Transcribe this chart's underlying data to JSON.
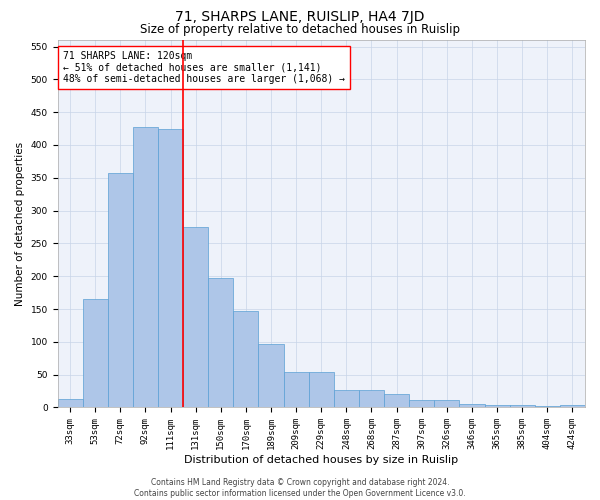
{
  "title": "71, SHARPS LANE, RUISLIP, HA4 7JD",
  "subtitle": "Size of property relative to detached houses in Ruislip",
  "xlabel": "Distribution of detached houses by size in Ruislip",
  "ylabel": "Number of detached properties",
  "categories": [
    "33sqm",
    "53sqm",
    "72sqm",
    "92sqm",
    "111sqm",
    "131sqm",
    "150sqm",
    "170sqm",
    "189sqm",
    "209sqm",
    "229sqm",
    "248sqm",
    "268sqm",
    "287sqm",
    "307sqm",
    "326sqm",
    "346sqm",
    "365sqm",
    "385sqm",
    "404sqm",
    "424sqm"
  ],
  "values": [
    13,
    165,
    358,
    428,
    425,
    275,
    197,
    147,
    97,
    54,
    54,
    27,
    27,
    20,
    11,
    11,
    6,
    4,
    4,
    2,
    4
  ],
  "bar_color": "#aec6e8",
  "bar_edge_color": "#5a9fd4",
  "vline_x": 4.5,
  "vline_color": "red",
  "annotation_text": "71 SHARPS LANE: 120sqm\n← 51% of detached houses are smaller (1,141)\n48% of semi-detached houses are larger (1,068) →",
  "annotation_box_color": "white",
  "annotation_box_edge": "red",
  "ylim": [
    0,
    560
  ],
  "yticks": [
    0,
    50,
    100,
    150,
    200,
    250,
    300,
    350,
    400,
    450,
    500,
    550
  ],
  "grid_color": "#c8d4e8",
  "background_color": "#eef2fa",
  "footer": "Contains HM Land Registry data © Crown copyright and database right 2024.\nContains public sector information licensed under the Open Government Licence v3.0.",
  "title_fontsize": 10,
  "subtitle_fontsize": 8.5,
  "xlabel_fontsize": 8,
  "ylabel_fontsize": 7.5,
  "tick_fontsize": 6.5,
  "annotation_fontsize": 7,
  "footer_fontsize": 5.5
}
